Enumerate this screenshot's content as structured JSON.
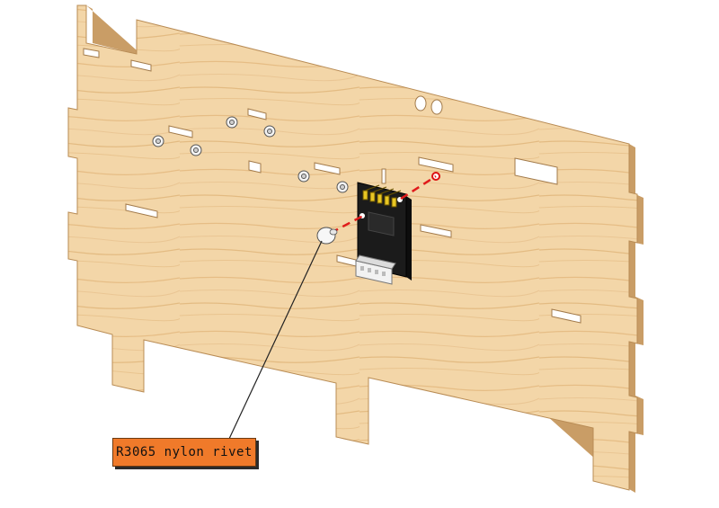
{
  "callout": {
    "label": "R3065 nylon rivet"
  },
  "parts": {
    "panel": "wooden-panel",
    "module": "sensor-module",
    "rivet": "nylon-rivet"
  },
  "colors": {
    "wood": "#f2d3a3",
    "wood_grain": "#e3b77a",
    "wood_edge": "#c9a06a",
    "module_board": "#1b1b1b",
    "pin_header": "#e8c623",
    "connector": "#f2f2f2",
    "guide_line": "#e01b1b",
    "callout_fill": "#f07a2a"
  }
}
